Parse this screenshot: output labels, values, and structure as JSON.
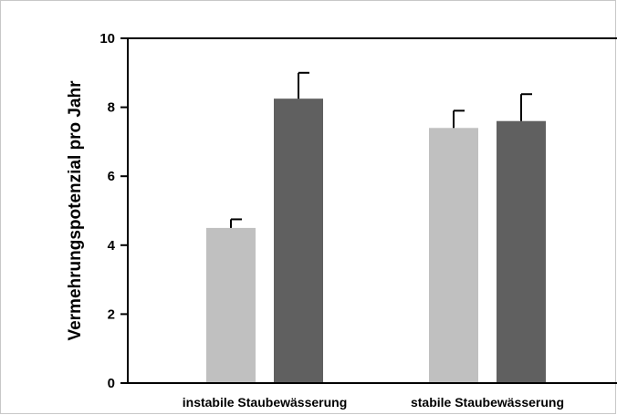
{
  "chart_data": {
    "type": "bar",
    "title": "",
    "xlabel": "",
    "ylabel": "Vermehrungspotenzial pro Jahr",
    "ylim": [
      0,
      10
    ],
    "yticks": [
      0,
      2,
      4,
      6,
      8,
      10
    ],
    "grid": false,
    "categories": [
      "instabile Staubewässerung",
      "stabile Staubewässerung"
    ],
    "series": [
      {
        "values": [
          4.5,
          7.4
        ],
        "errors": [
          0.25,
          0.5
        ],
        "color": "#c0c0c0"
      },
      {
        "values": [
          8.25,
          7.6
        ],
        "errors": [
          0.75,
          0.78
        ],
        "color": "#606060"
      }
    ]
  }
}
